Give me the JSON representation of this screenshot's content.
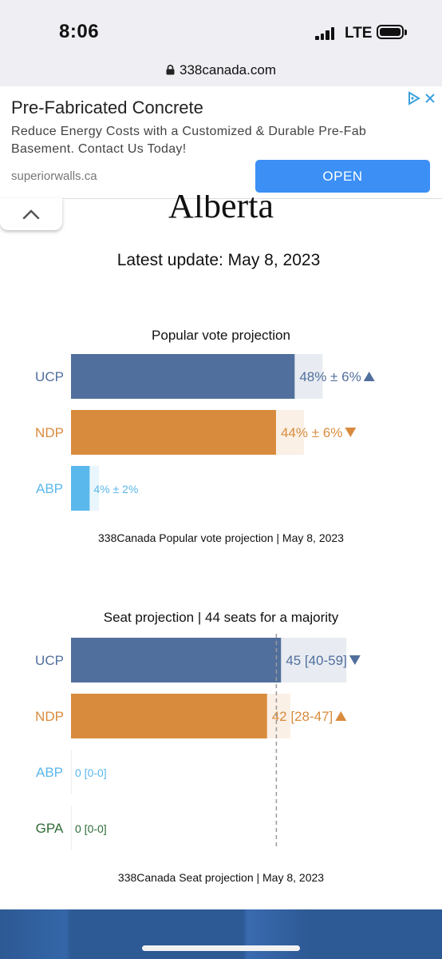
{
  "status": {
    "time": "8:06",
    "network": "LTE"
  },
  "browser": {
    "url": "338canada.com"
  },
  "ad": {
    "title": "Pre-Fabricated Concrete",
    "description": "Reduce Energy Costs with a Customized & Durable Pre-Fab Basement. Contact Us Today!",
    "domain": "superiorwalls.ca",
    "button": "OPEN"
  },
  "page": {
    "heading": "Alberta",
    "update": "Latest update: May 8, 2023"
  },
  "colors": {
    "UCP": "#516f9c",
    "NDP": "#d98b3d",
    "ABP": "#5ab8ec",
    "GPA": "#2e6d36"
  },
  "chart_data": [
    {
      "type": "bar",
      "title": "Popular vote projection",
      "categories": [
        "UCP",
        "NDP",
        "ABP"
      ],
      "values": [
        48,
        44,
        4
      ],
      "lower": [
        42,
        38,
        2
      ],
      "upper": [
        54,
        50,
        6
      ],
      "labels": [
        "48% ± 6%",
        "44% ± 6%",
        "4% ± 2%"
      ],
      "trend": [
        "up",
        "down",
        ""
      ],
      "caption": "338Canada Popular vote projection | May 8, 2023"
    },
    {
      "type": "bar",
      "title": "Seat projection | 44 seats for a majority",
      "categories": [
        "UCP",
        "NDP",
        "ABP",
        "GPA"
      ],
      "values": [
        45,
        42,
        0,
        0
      ],
      "lower": [
        40,
        28,
        0,
        0
      ],
      "upper": [
        59,
        47,
        0,
        0
      ],
      "labels": [
        "45 [40-59]",
        "42 [28-47]",
        "0 [0-0]",
        "0 [0-0]"
      ],
      "trend": [
        "down",
        "up",
        "",
        ""
      ],
      "majority": 44,
      "caption": "338Canada Seat projection | May 8, 2023"
    }
  ]
}
